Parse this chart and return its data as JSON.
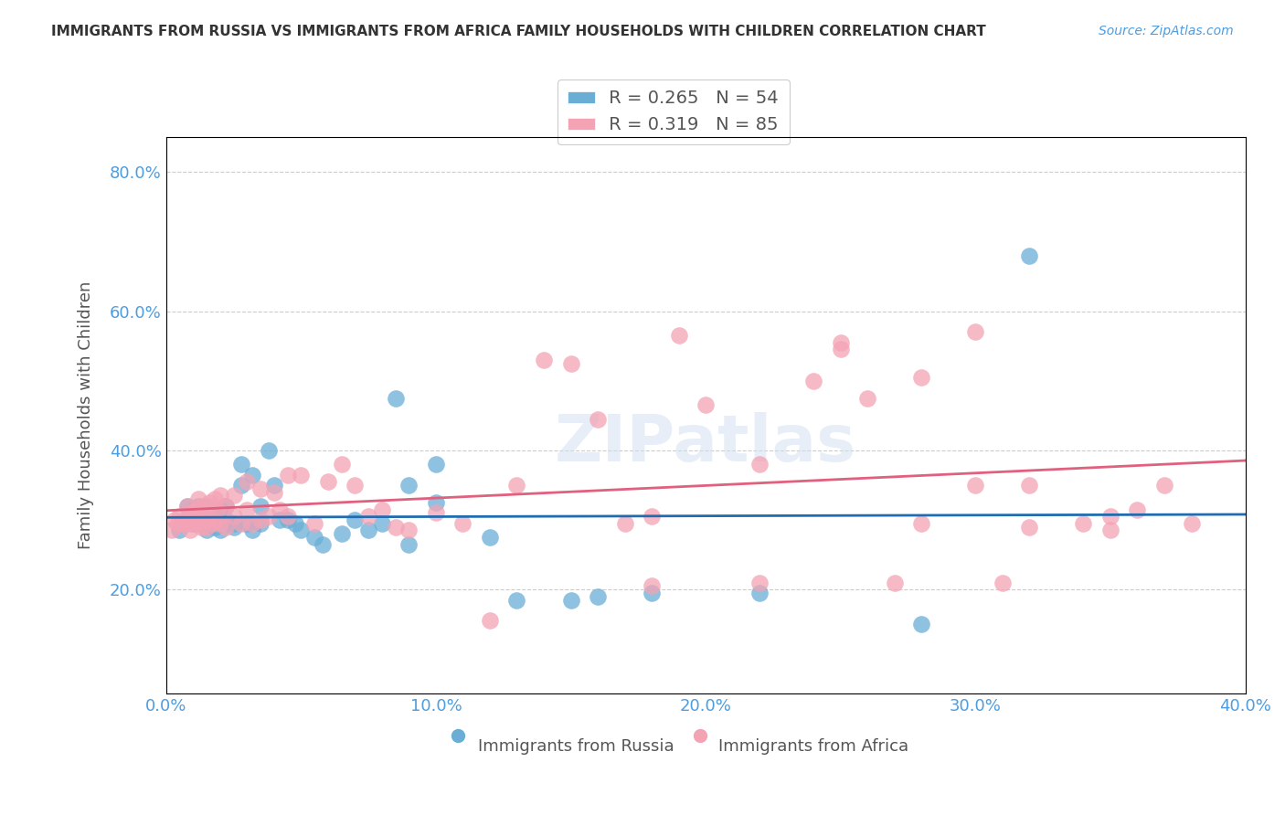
{
  "title": "IMMIGRANTS FROM RUSSIA VS IMMIGRANTS FROM AFRICA FAMILY HOUSEHOLDS WITH CHILDREN CORRELATION CHART",
  "source": "Source: ZipAtlas.com",
  "xlabel_ticks": [
    "0.0%",
    "10.0%",
    "20.0%",
    "30.0%",
    "40.0%"
  ],
  "ylabel_ticks": [
    "20.0%",
    "40.0%",
    "60.0%",
    "80.0%"
  ],
  "ylabel_label": "Family Households with Children",
  "xlabel_label_russia": "Immigrants from Russia",
  "xlabel_label_africa": "Immigrants from Africa",
  "xlim": [
    0.0,
    0.4
  ],
  "ylim": [
    0.05,
    0.85
  ],
  "ytick_positions": [
    0.2,
    0.4,
    0.6,
    0.8
  ],
  "xtick_positions": [
    0.0,
    0.1,
    0.2,
    0.3,
    0.4
  ],
  "legend_r_russia": "0.265",
  "legend_n_russia": "54",
  "legend_r_africa": "0.319",
  "legend_n_africa": "85",
  "blue_color": "#6aaed6",
  "pink_color": "#f4a3b5",
  "blue_line_color": "#1f6cb0",
  "pink_line_color": "#e0607e",
  "label_color": "#4d9de0",
  "title_color": "#333333",
  "watermark": "ZIPatlas",
  "russia_x": [
    0.005,
    0.008,
    0.008,
    0.01,
    0.01,
    0.01,
    0.012,
    0.012,
    0.013,
    0.015,
    0.015,
    0.015,
    0.016,
    0.016,
    0.018,
    0.019,
    0.02,
    0.02,
    0.022,
    0.022,
    0.025,
    0.025,
    0.028,
    0.028,
    0.03,
    0.032,
    0.032,
    0.035,
    0.035,
    0.038,
    0.04,
    0.042,
    0.045,
    0.048,
    0.05,
    0.055,
    0.058,
    0.065,
    0.07,
    0.075,
    0.08,
    0.085,
    0.09,
    0.09,
    0.1,
    0.1,
    0.12,
    0.13,
    0.15,
    0.16,
    0.18,
    0.22,
    0.28,
    0.32
  ],
  "russia_y": [
    0.285,
    0.3,
    0.32,
    0.295,
    0.31,
    0.315,
    0.305,
    0.32,
    0.295,
    0.31,
    0.32,
    0.285,
    0.295,
    0.3,
    0.29,
    0.31,
    0.315,
    0.285,
    0.3,
    0.32,
    0.29,
    0.295,
    0.35,
    0.38,
    0.295,
    0.285,
    0.365,
    0.295,
    0.32,
    0.4,
    0.35,
    0.3,
    0.3,
    0.295,
    0.285,
    0.275,
    0.265,
    0.28,
    0.3,
    0.285,
    0.295,
    0.475,
    0.35,
    0.265,
    0.38,
    0.325,
    0.275,
    0.185,
    0.185,
    0.19,
    0.195,
    0.195,
    0.15,
    0.68
  ],
  "africa_x": [
    0.002,
    0.003,
    0.004,
    0.005,
    0.006,
    0.007,
    0.008,
    0.008,
    0.009,
    0.009,
    0.01,
    0.01,
    0.011,
    0.011,
    0.012,
    0.012,
    0.013,
    0.013,
    0.014,
    0.015,
    0.015,
    0.016,
    0.016,
    0.017,
    0.018,
    0.018,
    0.019,
    0.02,
    0.02,
    0.022,
    0.022,
    0.025,
    0.025,
    0.028,
    0.03,
    0.03,
    0.032,
    0.035,
    0.035,
    0.038,
    0.04,
    0.042,
    0.045,
    0.045,
    0.05,
    0.055,
    0.06,
    0.065,
    0.07,
    0.075,
    0.08,
    0.085,
    0.09,
    0.1,
    0.11,
    0.12,
    0.13,
    0.14,
    0.15,
    0.16,
    0.17,
    0.18,
    0.2,
    0.22,
    0.24,
    0.25,
    0.26,
    0.28,
    0.3,
    0.32,
    0.34,
    0.35,
    0.36,
    0.37,
    0.38,
    0.3,
    0.25,
    0.28,
    0.32,
    0.35,
    0.18,
    0.22,
    0.27,
    0.31,
    0.19
  ],
  "africa_y": [
    0.285,
    0.3,
    0.295,
    0.305,
    0.295,
    0.3,
    0.295,
    0.32,
    0.285,
    0.31,
    0.295,
    0.305,
    0.3,
    0.315,
    0.295,
    0.33,
    0.29,
    0.32,
    0.31,
    0.29,
    0.3,
    0.315,
    0.325,
    0.295,
    0.3,
    0.33,
    0.315,
    0.295,
    0.335,
    0.29,
    0.32,
    0.305,
    0.335,
    0.295,
    0.315,
    0.355,
    0.295,
    0.3,
    0.345,
    0.305,
    0.34,
    0.315,
    0.305,
    0.365,
    0.365,
    0.295,
    0.355,
    0.38,
    0.35,
    0.305,
    0.315,
    0.29,
    0.285,
    0.31,
    0.295,
    0.155,
    0.35,
    0.53,
    0.525,
    0.445,
    0.295,
    0.305,
    0.465,
    0.38,
    0.5,
    0.555,
    0.475,
    0.505,
    0.35,
    0.35,
    0.295,
    0.305,
    0.315,
    0.35,
    0.295,
    0.57,
    0.545,
    0.295,
    0.29,
    0.285,
    0.205,
    0.21,
    0.21,
    0.21,
    0.565
  ]
}
